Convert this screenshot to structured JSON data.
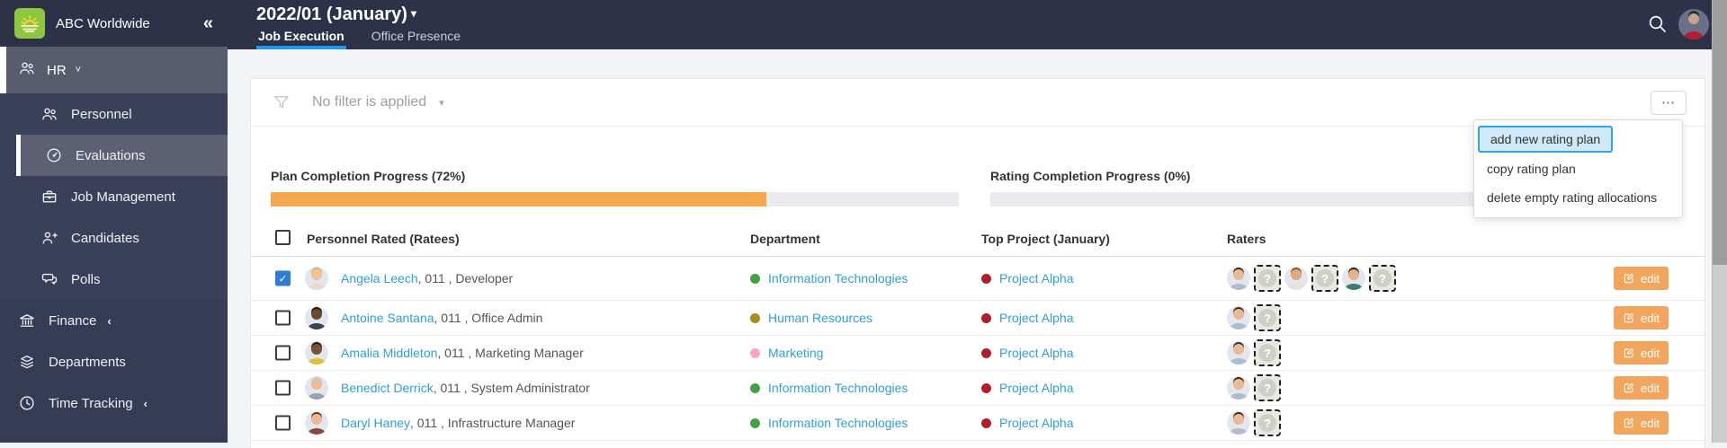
{
  "brand": {
    "name": "ABC Worldwide",
    "collapse_icon": "«",
    "logo_icon": "sunrise-icon"
  },
  "sidebar": {
    "group": {
      "label": "HR",
      "icon": "people-group-icon",
      "chevron": "⌄"
    },
    "items": [
      {
        "label": "Personnel",
        "icon": "people-icon",
        "selected": false
      },
      {
        "label": "Evaluations",
        "icon": "gauge-icon",
        "selected": true
      },
      {
        "label": "Job Management",
        "icon": "briefcase-icon",
        "selected": false
      },
      {
        "label": "Candidates",
        "icon": "person-plus-icon",
        "selected": false
      },
      {
        "label": "Polls",
        "icon": "chat-icon",
        "selected": false
      }
    ],
    "bottom_items": [
      {
        "label": "Finance",
        "icon": "bank-icon",
        "collapsed": true
      },
      {
        "label": "Departments",
        "icon": "layers-icon",
        "collapsed": false
      },
      {
        "label": "Time Tracking",
        "icon": "clock-icon",
        "collapsed": true
      }
    ]
  },
  "topbar": {
    "period": "2022/01 (January)",
    "period_caret": "▾",
    "tabs": [
      {
        "label": "Job Execution",
        "active": true
      },
      {
        "label": "Office Presence",
        "active": false
      }
    ],
    "search_icon": "search-icon",
    "user_avatar": "user-avatar"
  },
  "filter": {
    "label": "No filter is applied",
    "caret": "▾",
    "icon": "funnel-icon"
  },
  "more_menu": {
    "button_glyph": "⋯",
    "items": [
      {
        "label": "add new rating plan",
        "highlighted": true
      },
      {
        "label": "copy rating plan",
        "highlighted": false
      },
      {
        "label": "delete empty rating allocations",
        "highlighted": false
      }
    ]
  },
  "progress": [
    {
      "label": "Plan Completion Progress (72%)",
      "percent": 72,
      "fill_color": "#f5a84e"
    },
    {
      "label": "Rating Completion Progress (0%)",
      "percent": 0,
      "fill_color": "#f5a84e"
    }
  ],
  "table": {
    "columns": [
      "Personnel Rated (Ratees)",
      "Department",
      "Top Project (January)",
      "Raters"
    ],
    "edit_label": "edit",
    "rows": [
      {
        "checked": true,
        "avatar": "av-blonde-woman",
        "name": "Angela Leech",
        "suffix": ", 011 , Developer",
        "department": "Information Technologies",
        "dept_color": "#43a047",
        "project": "Project Alpha",
        "project_color": "#ae1e2c",
        "raters": [
          "av-brunette-woman",
          "unknown",
          "av-beard-man",
          "unknown",
          "av-darkhair-man",
          "unknown"
        ]
      },
      {
        "checked": false,
        "avatar": "av-dark-man",
        "name": "Antoine Santana",
        "suffix": ", 011 , Office Admin",
        "department": "Human Resources",
        "dept_color": "#a38f1e",
        "project": "Project Alpha",
        "project_color": "#ae1e2c",
        "raters": [
          "av-brunette-woman",
          "unknown"
        ]
      },
      {
        "checked": false,
        "avatar": "av-dark-woman",
        "name": "Amalia Middleton",
        "suffix": ", 011 , Marketing Manager",
        "department": "Marketing",
        "dept_color": "#f7a6c6",
        "project": "Project Alpha",
        "project_color": "#ae1e2c",
        "raters": [
          "av-brunette-woman",
          "unknown"
        ]
      },
      {
        "checked": false,
        "avatar": "av-light-man",
        "name": "Benedict Derrick",
        "suffix": ", 011 , System Administrator",
        "department": "Information Technologies",
        "dept_color": "#43a047",
        "project": "Project Alpha",
        "project_color": "#ae1e2c",
        "raters": [
          "av-brunette-woman",
          "unknown"
        ]
      },
      {
        "checked": false,
        "avatar": "av-brown-woman",
        "name": "Daryl Haney",
        "suffix": ", 011 , Infrastructure Manager",
        "department": "Information Technologies",
        "dept_color": "#43a047",
        "project": "Project Alpha",
        "project_color": "#ae1e2c",
        "raters": [
          "av-brunette-woman",
          "unknown"
        ]
      }
    ]
  },
  "colors": {
    "accent_blue": "#1e9ceb",
    "link_blue": "#2f9fd8",
    "orange": "#f5a84e",
    "edit_orange": "#f2a55c",
    "menu_highlight_bg": "#cfe9f8",
    "menu_highlight_border": "#35a3e0",
    "sidebar_bg": "#373c55",
    "topbar_bg": "#2e3249"
  }
}
